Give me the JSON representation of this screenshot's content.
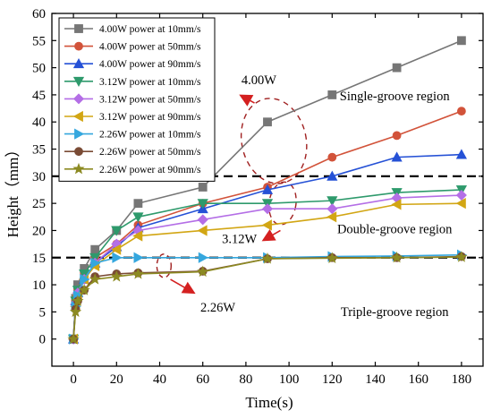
{
  "chart_data": {
    "type": "line",
    "xlabel": "Time(s)",
    "ylabel": "Height（mm）",
    "xlim": [
      -10,
      190
    ],
    "ylim": [
      -5,
      60
    ],
    "xticks": [
      0,
      20,
      40,
      60,
      80,
      100,
      120,
      140,
      160,
      180
    ],
    "yticks": [
      0,
      5,
      10,
      15,
      20,
      25,
      30,
      35,
      40,
      45,
      50,
      55,
      60
    ],
    "legend_position": "top-left",
    "reference_lines": [
      {
        "y": 30,
        "style": "dashed",
        "color": "#000000"
      },
      {
        "y": 15,
        "style": "dashed",
        "color": "#000000"
      }
    ],
    "region_labels": [
      {
        "text": "Single-groove region",
        "x": 149,
        "y": 44
      },
      {
        "text": "Double-groove region",
        "x": 149,
        "y": 19.5
      },
      {
        "text": "Triple-groove region",
        "x": 149,
        "y": 4.2
      }
    ],
    "power_annotations": [
      {
        "text": "4.00W",
        "x": 86,
        "y": 47
      },
      {
        "text": "3.12W",
        "x": 77,
        "y": 17.7
      },
      {
        "text": "2.26W",
        "x": 67,
        "y": 5.1
      }
    ],
    "series": [
      {
        "name": "4.00W power at 10mm/s",
        "color": "#767676",
        "marker": "square",
        "x": [
          0,
          1,
          2,
          5,
          10,
          20,
          30,
          60,
          90,
          120,
          150,
          180
        ],
        "y": [
          0,
          7.5,
          10,
          13,
          16.5,
          20,
          25,
          28,
          40,
          45,
          50,
          55
        ]
      },
      {
        "name": "4.00W power at 50mm/s",
        "color": "#d2533a",
        "marker": "circle",
        "x": [
          0,
          1,
          2,
          5,
          10,
          20,
          30,
          60,
          90,
          120,
          150,
          180
        ],
        "y": [
          0,
          7,
          9,
          12,
          15,
          17.5,
          21,
          25,
          28,
          33.5,
          37.5,
          42
        ]
      },
      {
        "name": "4.00W power at 90mm/s",
        "color": "#2551d6",
        "marker": "triangle-up",
        "x": [
          0,
          1,
          2,
          5,
          10,
          20,
          30,
          60,
          90,
          120,
          150,
          180
        ],
        "y": [
          0,
          7,
          8.5,
          11,
          14,
          17,
          20.5,
          24,
          27.5,
          30,
          33.5,
          34
        ]
      },
      {
        "name": "3.12W power at 10mm/s",
        "color": "#2e9a6c",
        "marker": "triangle-down",
        "x": [
          0,
          1,
          2,
          5,
          10,
          20,
          30,
          60,
          90,
          120,
          150,
          180
        ],
        "y": [
          0,
          7,
          9,
          12,
          15,
          20,
          22.5,
          25,
          25,
          25.5,
          27,
          27.5
        ]
      },
      {
        "name": "3.12W power at 50mm/s",
        "color": "#b46ee6",
        "marker": "diamond",
        "x": [
          0,
          1,
          2,
          5,
          10,
          20,
          30,
          60,
          90,
          120,
          150,
          180
        ],
        "y": [
          0,
          6.5,
          8.5,
          11,
          14,
          17.5,
          20,
          22,
          24,
          24,
          26,
          26.5
        ]
      },
      {
        "name": "3.12W power at 90mm/s",
        "color": "#d2a614",
        "marker": "triangle-left",
        "x": [
          0,
          1,
          2,
          5,
          10,
          20,
          30,
          60,
          90,
          120,
          150,
          180
        ],
        "y": [
          0,
          6,
          8,
          11,
          13.5,
          16.5,
          19,
          20,
          21,
          22.5,
          24.8,
          25
        ]
      },
      {
        "name": "2.26W power at 10mm/s",
        "color": "#35a7de",
        "marker": "triangle-right",
        "x": [
          0,
          1,
          2,
          5,
          10,
          20,
          30,
          60,
          90,
          120,
          150,
          180
        ],
        "y": [
          0,
          6,
          8,
          11,
          14,
          15,
          15,
          15,
          15,
          15.2,
          15.3,
          15.5
        ]
      },
      {
        "name": "2.26W power at 50mm/s",
        "color": "#7a4b35",
        "marker": "circle",
        "x": [
          0,
          1,
          2,
          5,
          10,
          20,
          30,
          60,
          90,
          120,
          150,
          180
        ],
        "y": [
          0,
          5.5,
          7,
          9,
          11.5,
          12,
          12.2,
          12.5,
          14.8,
          15,
          15,
          15.2
        ]
      },
      {
        "name": "2.26W power at 90mm/s",
        "color": "#8c8a22",
        "marker": "star",
        "x": [
          0,
          1,
          2,
          5,
          10,
          20,
          30,
          60,
          90,
          120,
          150,
          180
        ],
        "y": [
          0,
          5,
          7,
          9,
          11,
          11.5,
          12,
          12.4,
          14.8,
          14.9,
          15,
          15.1
        ]
      }
    ]
  }
}
